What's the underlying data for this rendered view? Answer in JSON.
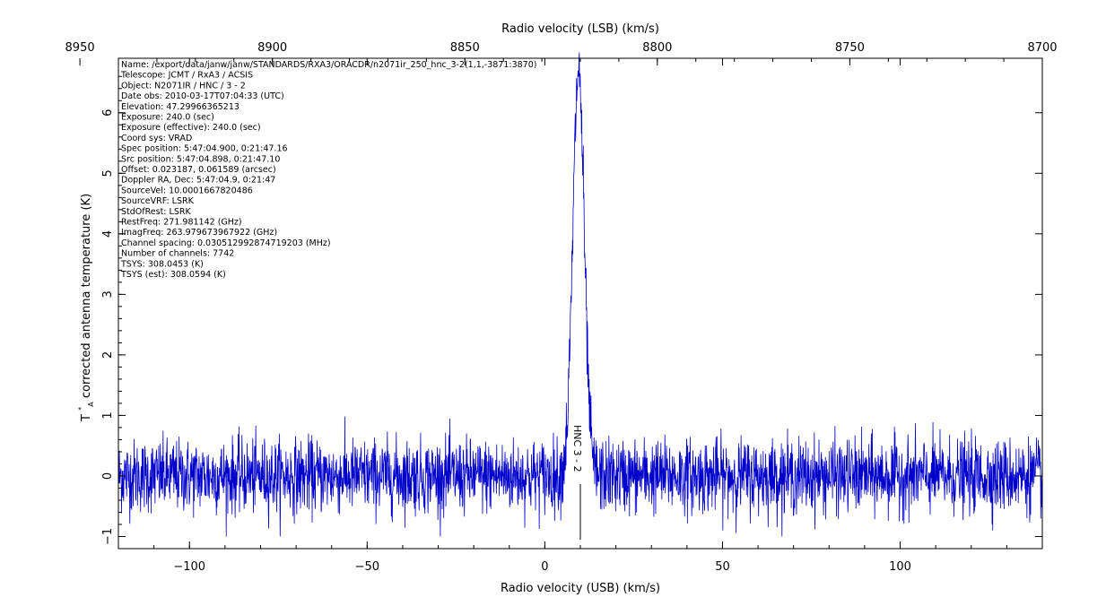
{
  "chart_data": {
    "type": "line",
    "top_axis": {
      "label": "Radio velocity (LSB) (km/s)",
      "range": [
        8940,
        8700
      ],
      "ticks": [
        8950,
        8900,
        8850,
        8800,
        8750,
        8700
      ]
    },
    "bottom_axis": {
      "label": "Radio velocity (USB) (km/s)",
      "range": [
        -120,
        140
      ],
      "ticks": [
        -100,
        -50,
        0,
        50,
        100
      ]
    },
    "y_axis": {
      "label_main": "T",
      "label_super": "*",
      "label_sub": "A",
      "label_rest": "  corrected antenna temperature (K)",
      "range": [
        -1.2,
        6.9
      ],
      "ticks": [
        -1,
        0,
        1,
        2,
        3,
        4,
        5,
        6
      ]
    },
    "series": [
      {
        "color": "#0000cc",
        "noise_sigma": 0.3,
        "noise_clip": [
          -1.0,
          1.3
        ],
        "peak": {
          "x": 9.5,
          "y": 6.7,
          "sigma": 1.6
        }
      }
    ],
    "line_marker": {
      "x": 10,
      "label": "HNC 3 - 2"
    },
    "grid": false,
    "legend": "none"
  },
  "header_info": [
    "Name: /export/data/janw/janw/STANDARDS/RXA3/ORACDR/n2071ir_250_hnc_3-2(1,1,-3871:3870)",
    "Telescope: JCMT / RxA3 / ACSIS",
    "Object: N2071IR / HNC / 3 - 2",
    "Date obs: 2010-03-17T07:04:33 (UTC)",
    "Elevation: 47.29966365213",
    "Exposure: 240.0 (sec)",
    "Exposure (effective): 240.0 (sec)",
    "Coord sys: VRAD",
    "Spec position: 5:47:04.900, 0:21:47.16",
    "Src position: 5:47:04.898, 0:21:47.10",
    "Offset: 0.023187, 0.061589 (arcsec)",
    "Doppler RA, Dec: 5:47:04.9, 0:21:47",
    "SourceVel: 10.0001667820486",
    "SourceVRF: LSRK",
    "StdOfRest: LSRK",
    "RestFreq: 271.981142 (GHz)",
    "ImagFreq: 263.979673967922 (GHz)",
    "Channel spacing: 0.030512992874719203 (MHz)",
    "Number of channels: 7742",
    "TSYS: 308.0453 (K)",
    "TSYS (est): 308.0594 (K)"
  ]
}
